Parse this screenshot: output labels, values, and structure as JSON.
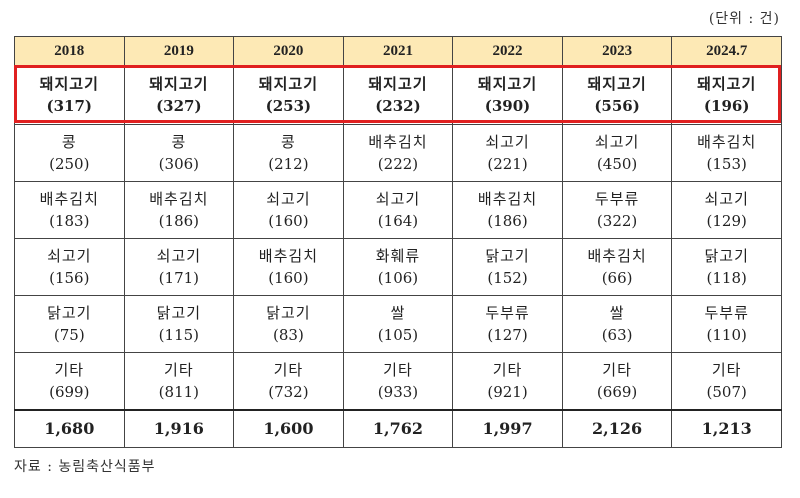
{
  "unit_label": "(단위 : 건)",
  "years": [
    "2018",
    "2019",
    "2020",
    "2021",
    "2022",
    "2023",
    "2024.7"
  ],
  "rows": [
    [
      {
        "name": "돼지고기",
        "count": "(317)"
      },
      {
        "name": "돼지고기",
        "count": "(327)"
      },
      {
        "name": "돼지고기",
        "count": "(253)"
      },
      {
        "name": "돼지고기",
        "count": "(232)"
      },
      {
        "name": "돼지고기",
        "count": "(390)"
      },
      {
        "name": "돼지고기",
        "count": "(556)"
      },
      {
        "name": "돼지고기",
        "count": "(196)"
      }
    ],
    [
      {
        "name": "콩",
        "count": "(250)"
      },
      {
        "name": "콩",
        "count": "(306)"
      },
      {
        "name": "콩",
        "count": "(212)"
      },
      {
        "name": "배추김치",
        "count": "(222)"
      },
      {
        "name": "쇠고기",
        "count": "(221)"
      },
      {
        "name": "쇠고기",
        "count": "(450)"
      },
      {
        "name": "배추김치",
        "count": "(153)"
      }
    ],
    [
      {
        "name": "배추김치",
        "count": "(183)"
      },
      {
        "name": "배추김치",
        "count": "(186)"
      },
      {
        "name": "쇠고기",
        "count": "(160)"
      },
      {
        "name": "쇠고기",
        "count": "(164)"
      },
      {
        "name": "배추김치",
        "count": "(186)"
      },
      {
        "name": "두부류",
        "count": "(322)"
      },
      {
        "name": "쇠고기",
        "count": "(129)"
      }
    ],
    [
      {
        "name": "쇠고기",
        "count": "(156)"
      },
      {
        "name": "쇠고기",
        "count": "(171)"
      },
      {
        "name": "배추김치",
        "count": "(160)"
      },
      {
        "name": "화훼류",
        "count": "(106)"
      },
      {
        "name": "닭고기",
        "count": "(152)"
      },
      {
        "name": "배추김치",
        "count": "(66)"
      },
      {
        "name": "닭고기",
        "count": "(118)"
      }
    ],
    [
      {
        "name": "닭고기",
        "count": "(75)"
      },
      {
        "name": "닭고기",
        "count": "(115)"
      },
      {
        "name": "닭고기",
        "count": "(83)"
      },
      {
        "name": "쌀",
        "count": "(105)"
      },
      {
        "name": "두부류",
        "count": "(127)"
      },
      {
        "name": "쌀",
        "count": "(63)"
      },
      {
        "name": "두부류",
        "count": "(110)"
      }
    ],
    [
      {
        "name": "기타",
        "count": "(699)"
      },
      {
        "name": "기타",
        "count": "(811)"
      },
      {
        "name": "기타",
        "count": "(732)"
      },
      {
        "name": "기타",
        "count": "(933)"
      },
      {
        "name": "기타",
        "count": "(921)"
      },
      {
        "name": "기타",
        "count": "(669)"
      },
      {
        "name": "기타",
        "count": "(507)"
      }
    ]
  ],
  "totals": [
    "1,680",
    "1,916",
    "1,600",
    "1,762",
    "1,997",
    "2,126",
    "1,213"
  ],
  "source": "자료 : 농림축산식품부",
  "colors": {
    "header_bg": "#fde9b5",
    "highlight_border": "#e02020"
  }
}
